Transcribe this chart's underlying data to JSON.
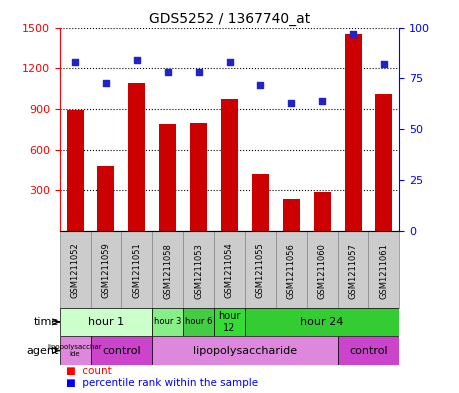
{
  "title": "GDS5252 / 1367740_at",
  "samples": [
    "GSM1211052",
    "GSM1211059",
    "GSM1211051",
    "GSM1211058",
    "GSM1211053",
    "GSM1211054",
    "GSM1211055",
    "GSM1211056",
    "GSM1211060",
    "GSM1211057",
    "GSM1211061"
  ],
  "counts": [
    895,
    480,
    1090,
    790,
    800,
    970,
    420,
    240,
    290,
    1450,
    1010
  ],
  "percentiles": [
    83,
    73,
    84,
    78,
    78,
    83,
    72,
    63,
    64,
    97,
    82
  ],
  "ylim_left": [
    0,
    1500
  ],
  "ylim_right": [
    0,
    100
  ],
  "yticks_left": [
    300,
    600,
    900,
    1200,
    1500
  ],
  "yticks_right": [
    0,
    25,
    50,
    75,
    100
  ],
  "bar_color": "#cc0000",
  "dot_color": "#2222cc",
  "time_rows": [
    {
      "label": "hour 1",
      "start": 0,
      "end": 3,
      "color": "#ccffcc",
      "fontsize": 8
    },
    {
      "label": "hour 3",
      "start": 3,
      "end": 4,
      "color": "#88ee88",
      "fontsize": 6
    },
    {
      "label": "hour 6",
      "start": 4,
      "end": 5,
      "color": "#44cc44",
      "fontsize": 6
    },
    {
      "label": "hour\n12",
      "start": 5,
      "end": 6,
      "color": "#33dd33",
      "fontsize": 7
    },
    {
      "label": "hour 24",
      "start": 6,
      "end": 11,
      "color": "#33cc33",
      "fontsize": 8
    }
  ],
  "agent_rows": [
    {
      "label": "lipopolysacchar\nide",
      "start": 0,
      "end": 1,
      "color": "#dd88dd",
      "fontsize": 5
    },
    {
      "label": "control",
      "start": 1,
      "end": 3,
      "color": "#cc44cc",
      "fontsize": 8
    },
    {
      "label": "lipopolysaccharide",
      "start": 3,
      "end": 9,
      "color": "#dd88dd",
      "fontsize": 8
    },
    {
      "label": "control",
      "start": 9,
      "end": 11,
      "color": "#cc44cc",
      "fontsize": 8
    }
  ],
  "sample_box_color": "#cccccc",
  "sample_box_edge": "#888888"
}
